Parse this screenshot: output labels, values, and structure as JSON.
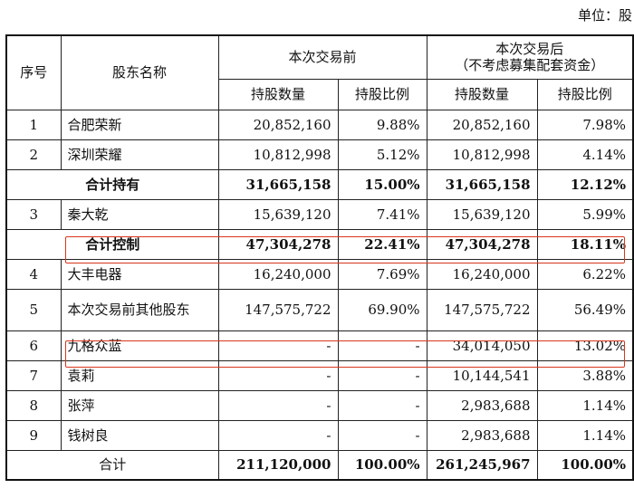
{
  "unit": "单位：股",
  "header": {
    "seq": "序号",
    "name": "股东名称",
    "before": "本次交易前",
    "after_line1": "本次交易后",
    "after_line2": "（不考虑募集配套资金）",
    "shares": "持股数量",
    "ratio": "持股比例"
  },
  "rows": [
    {
      "seq": "1",
      "name": "合肥荣新",
      "before_shares": "20,852,160",
      "before_ratio": "9.88%",
      "after_shares": "20,852,160",
      "after_ratio": "7.98%"
    },
    {
      "seq": "2",
      "name": "深圳荣耀",
      "before_shares": "10,812,998",
      "before_ratio": "5.12%",
      "after_shares": "10,812,998",
      "after_ratio": "4.14%"
    },
    {
      "seq": "",
      "name": "合计持有",
      "before_shares": "31,665,158",
      "before_ratio": "15.00%",
      "after_shares": "31,665,158",
      "after_ratio": "12.12%"
    },
    {
      "seq": "3",
      "name": "秦大乾",
      "before_shares": "15,639,120",
      "before_ratio": "7.41%",
      "after_shares": "15,639,120",
      "after_ratio": "5.99%"
    },
    {
      "seq": "",
      "name": "合计控制",
      "before_shares": "47,304,278",
      "before_ratio": "22.41%",
      "after_shares": "47,304,278",
      "after_ratio": "18.11%"
    },
    {
      "seq": "4",
      "name": "大丰电器",
      "before_shares": "16,240,000",
      "before_ratio": "7.69%",
      "after_shares": "16,240,000",
      "after_ratio": "6.22%"
    },
    {
      "seq": "5",
      "name": "本次交易前其他股东",
      "before_shares": "147,575,722",
      "before_ratio": "69.90%",
      "after_shares": "147,575,722",
      "after_ratio": "56.49%"
    },
    {
      "seq": "6",
      "name": "九格众蓝",
      "before_shares": "-",
      "before_ratio": "-",
      "after_shares": "34,014,050",
      "after_ratio": "13.02%"
    },
    {
      "seq": "7",
      "name": "袁莉",
      "before_shares": "-",
      "before_ratio": "-",
      "after_shares": "10,144,541",
      "after_ratio": "3.88%"
    },
    {
      "seq": "8",
      "name": "张萍",
      "before_shares": "-",
      "before_ratio": "-",
      "after_shares": "2,983,688",
      "after_ratio": "1.14%"
    },
    {
      "seq": "9",
      "name": "钱树良",
      "before_shares": "-",
      "before_ratio": "-",
      "after_shares": "2,983,688",
      "after_ratio": "1.14%"
    }
  ],
  "total": {
    "name": "合计",
    "before_shares": "211,120,000",
    "before_ratio": "100.00%",
    "after_shares": "261,245,967",
    "after_ratio": "100.00%"
  },
  "highlight_color": "#d9361c"
}
